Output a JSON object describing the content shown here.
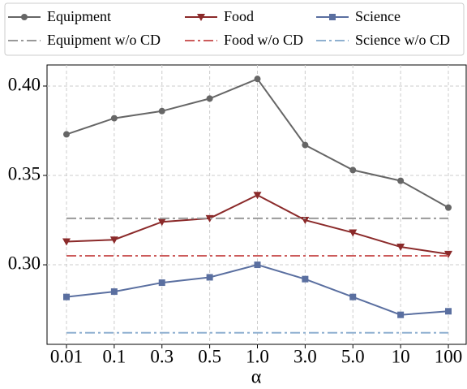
{
  "chart_data": {
    "type": "line",
    "x_label": "α",
    "categories": [
      "0.01",
      "0.1",
      "0.3",
      "0.5",
      "1.0",
      "3.0",
      "5.0",
      "10",
      "100"
    ],
    "ylim": [
      0.2555,
      0.4118
    ],
    "yticks": [
      {
        "value": 0.3,
        "label": "0.30"
      },
      {
        "value": 0.35,
        "label": "0.35"
      },
      {
        "value": 0.4,
        "label": "0.40"
      }
    ],
    "grid": true,
    "legend": "top",
    "series": [
      {
        "name": "Equipment",
        "color": "#666666",
        "marker": "circle",
        "style": "solid",
        "values": [
          0.373,
          0.382,
          0.386,
          0.393,
          0.404,
          0.367,
          0.353,
          0.347,
          0.332
        ]
      },
      {
        "name": "Food",
        "color": "#8b2a2a",
        "marker": "triangle-down",
        "style": "solid",
        "values": [
          0.313,
          0.314,
          0.324,
          0.326,
          0.339,
          0.325,
          0.318,
          0.31,
          0.306
        ]
      },
      {
        "name": "Science",
        "color": "#5a6fa0",
        "marker": "square",
        "style": "solid",
        "values": [
          0.282,
          0.285,
          0.29,
          0.293,
          0.3,
          0.292,
          0.282,
          0.272,
          0.274
        ]
      },
      {
        "name": "Equipment w/o CD",
        "color": "#999999",
        "marker": "none",
        "style": "dashdot",
        "values": [
          0.326,
          0.326,
          0.326,
          0.326,
          0.326,
          0.326,
          0.326,
          0.326,
          0.326
        ]
      },
      {
        "name": "Food w/o CD",
        "color": "#cc5c5c",
        "marker": "none",
        "style": "dashdot",
        "values": [
          0.305,
          0.305,
          0.305,
          0.305,
          0.305,
          0.305,
          0.305,
          0.305,
          0.305
        ]
      },
      {
        "name": "Science w/o CD",
        "color": "#8fb0d0",
        "marker": "none",
        "style": "dashdot",
        "values": [
          0.262,
          0.262,
          0.262,
          0.262,
          0.262,
          0.262,
          0.262,
          0.262,
          0.262
        ]
      }
    ]
  }
}
